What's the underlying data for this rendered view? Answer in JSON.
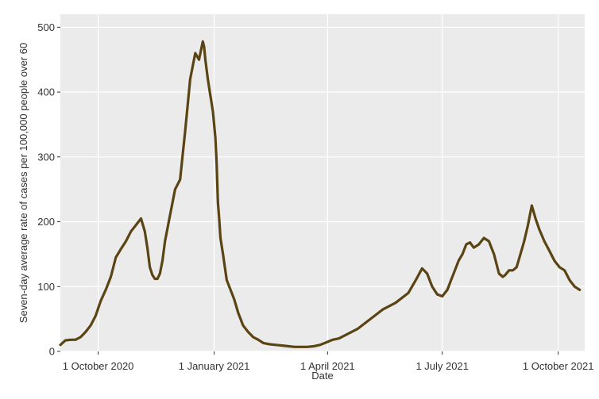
{
  "chart_data": {
    "type": "line",
    "xlabel": "Date",
    "ylabel": "Seven-day average rate of cases per 100,000 people over 60",
    "ylim": [
      0,
      520
    ],
    "xlim": [
      "2020-09-01",
      "2021-10-22"
    ],
    "grid": true,
    "background": "#ebebeb",
    "gridline_color": "#ffffff",
    "line_color": "#5a4413",
    "x_ticks": [
      {
        "date": "2020-10-01",
        "label": "1 October 2020"
      },
      {
        "date": "2021-01-01",
        "label": "1 January 2021"
      },
      {
        "date": "2021-04-01",
        "label": "1 April 2021"
      },
      {
        "date": "2021-07-01",
        "label": "1 July 2021"
      },
      {
        "date": "2021-10-01",
        "label": "1 October 2021"
      }
    ],
    "y_ticks": [
      0,
      100,
      200,
      300,
      400,
      500
    ],
    "series": [
      {
        "x": [
          "2020-09-01",
          "2020-09-05",
          "2020-09-09",
          "2020-09-13",
          "2020-09-17",
          "2020-09-21",
          "2020-09-25",
          "2020-09-29",
          "2020-10-03",
          "2020-10-07",
          "2020-10-11",
          "2020-10-15",
          "2020-10-19",
          "2020-10-23",
          "2020-10-27",
          "2020-10-31",
          "2020-11-04",
          "2020-11-07",
          "2020-11-09",
          "2020-11-11",
          "2020-11-13",
          "2020-11-15",
          "2020-11-17",
          "2020-11-19",
          "2020-11-21",
          "2020-11-23",
          "2020-11-27",
          "2020-12-01",
          "2020-12-05",
          "2020-12-09",
          "2020-12-13",
          "2020-12-17",
          "2020-12-20",
          "2020-12-23",
          "2020-12-24",
          "2020-12-25",
          "2020-12-27",
          "2020-12-29",
          "2020-12-31",
          "2021-01-02",
          "2021-01-03",
          "2021-01-04",
          "2021-01-05",
          "2021-01-06",
          "2021-01-08",
          "2021-01-11",
          "2021-01-14",
          "2021-01-17",
          "2021-01-20",
          "2021-01-24",
          "2021-01-28",
          "2021-02-01",
          "2021-02-05",
          "2021-02-09",
          "2021-02-14",
          "2021-02-19",
          "2021-02-24",
          "2021-03-01",
          "2021-03-06",
          "2021-03-11",
          "2021-03-16",
          "2021-03-21",
          "2021-03-26",
          "2021-03-31",
          "2021-04-05",
          "2021-04-10",
          "2021-04-15",
          "2021-04-25",
          "2021-05-05",
          "2021-05-15",
          "2021-05-25",
          "2021-06-04",
          "2021-06-10",
          "2021-06-15",
          "2021-06-19",
          "2021-06-23",
          "2021-06-27",
          "2021-07-01",
          "2021-07-05",
          "2021-07-08",
          "2021-07-11",
          "2021-07-14",
          "2021-07-17",
          "2021-07-20",
          "2021-07-23",
          "2021-07-26",
          "2021-07-30",
          "2021-08-03",
          "2021-08-07",
          "2021-08-11",
          "2021-08-15",
          "2021-08-18",
          "2021-08-20",
          "2021-08-23",
          "2021-08-26",
          "2021-08-29",
          "2021-09-01",
          "2021-09-04",
          "2021-09-07",
          "2021-09-10",
          "2021-09-13",
          "2021-09-16",
          "2021-09-20",
          "2021-09-24",
          "2021-09-28",
          "2021-10-02",
          "2021-10-06",
          "2021-10-10",
          "2021-10-14",
          "2021-10-18"
        ],
        "y": [
          10,
          17,
          18,
          18,
          22,
          30,
          40,
          55,
          78,
          95,
          115,
          145,
          158,
          170,
          185,
          195,
          205,
          185,
          160,
          130,
          118,
          112,
          112,
          120,
          140,
          170,
          210,
          250,
          265,
          340,
          420,
          460,
          450,
          478,
          470,
          450,
          420,
          395,
          370,
          330,
          290,
          230,
          205,
          175,
          150,
          110,
          95,
          80,
          60,
          40,
          30,
          22,
          18,
          13,
          11,
          10,
          9,
          8,
          7,
          7,
          7,
          8,
          10,
          14,
          18,
          20,
          25,
          35,
          50,
          65,
          75,
          90,
          110,
          128,
          120,
          100,
          88,
          85,
          95,
          110,
          125,
          140,
          150,
          165,
          168,
          160,
          165,
          175,
          170,
          150,
          120,
          115,
          118,
          125,
          125,
          130,
          150,
          170,
          195,
          225,
          205,
          188,
          170,
          155,
          140,
          130,
          125,
          110,
          100,
          95
        ]
      }
    ]
  }
}
